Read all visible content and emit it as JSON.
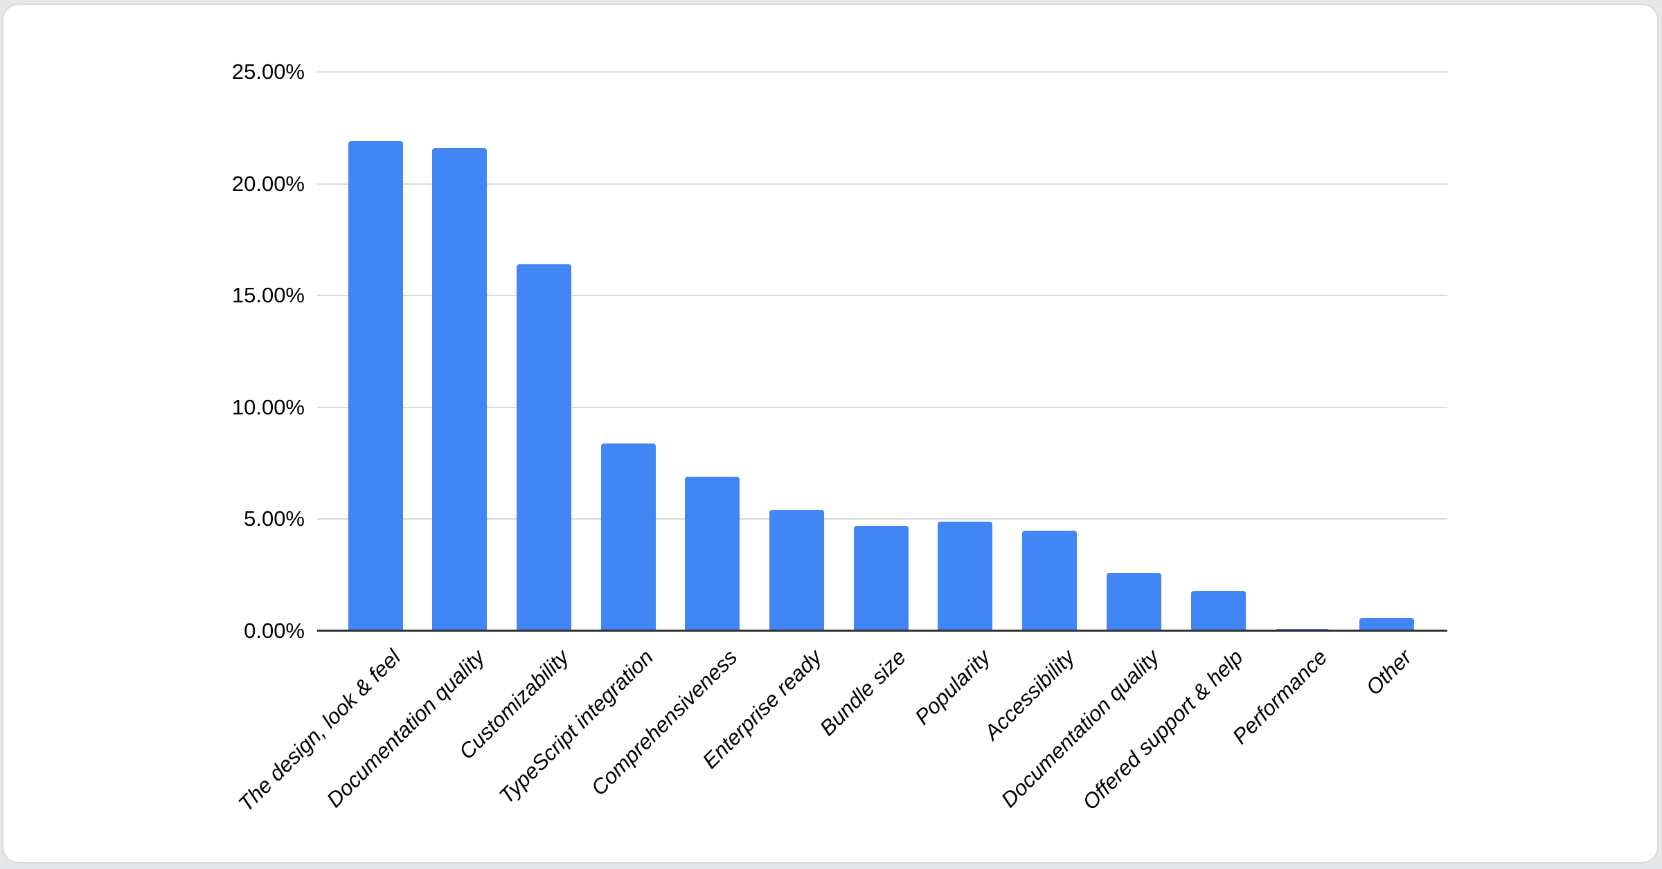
{
  "page": {
    "background_color": "#e7e8ea",
    "card": {
      "background_color": "#ffffff",
      "border_color": "#d9dbde"
    }
  },
  "chart_data": {
    "type": "bar",
    "title": "",
    "xlabel": "",
    "ylabel": "",
    "unit": "percent",
    "grid": true,
    "legend_position": "none",
    "bar_color": "#4285f4",
    "axis_line_color": "#333333",
    "gridline_color": "#d9d9d9",
    "label_color": "#000000",
    "ylim": [
      0,
      25
    ],
    "ytick_values": [
      25,
      20,
      15,
      10,
      5,
      0
    ],
    "ytick_labels": [
      "25.00%",
      "20.00%",
      "15.00%",
      "10.00%",
      "5.00%",
      "0.00%"
    ],
    "categories": [
      "The design, look & feel",
      "Documentation quality",
      "Customizability",
      "TypeScript integration",
      "Comprehensiveness",
      "Enterprise ready",
      "Bundle size",
      "Popularity",
      "Accessibility",
      "Documentation quality",
      "Offered support & help",
      "Performance",
      "Other"
    ],
    "values": [
      21.9,
      21.6,
      16.4,
      8.4,
      6.9,
      5.4,
      4.7,
      4.9,
      4.5,
      2.6,
      1.8,
      0.1,
      0.6
    ]
  }
}
